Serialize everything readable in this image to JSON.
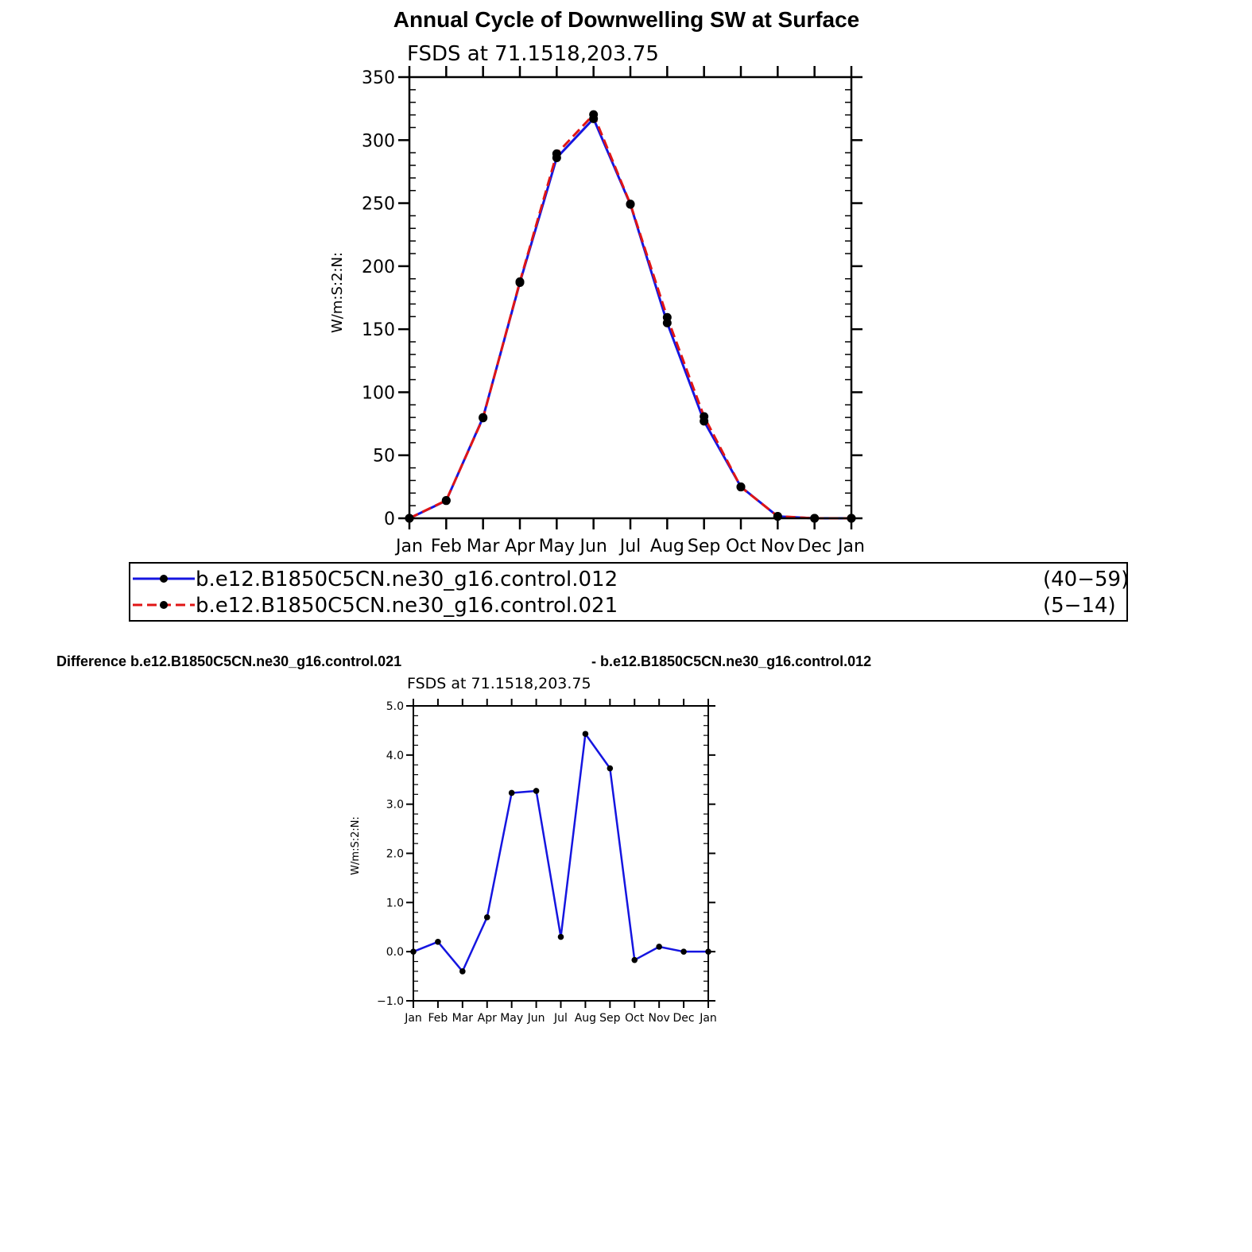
{
  "chart_data": [
    {
      "type": "line",
      "title": "Annual Cycle of Downwelling SW at Surface",
      "subtitle": "FSDS at 71.1518,203.75",
      "ylabel": "W/m:S:2:N:",
      "categories": [
        "Jan",
        "Feb",
        "Mar",
        "Apr",
        "May",
        "Jun",
        "Jul",
        "Aug",
        "Sep",
        "Oct",
        "Nov",
        "Dec",
        "Jan"
      ],
      "ylim": [
        0,
        350
      ],
      "yticks": [
        0,
        50,
        100,
        150,
        200,
        250,
        300,
        350
      ],
      "ytick_labels": [
        "0",
        "50",
        "100",
        "150",
        "200",
        "250",
        "300",
        "350"
      ],
      "series": [
        {
          "name": "b.e12.B1850C5CN.ne30_g16.control.012",
          "years": "(40−59)",
          "color": "#1515e0",
          "dash": "solid",
          "values": [
            0,
            14,
            80,
            187,
            286,
            317,
            249,
            155,
            77,
            25,
            1.5,
            0,
            0
          ]
        },
        {
          "name": "b.e12.B1850C5CN.ne30_g16.control.021",
          "years": "(5−14)",
          "color": "#e01515",
          "dash": "dashed",
          "values": [
            0,
            14.2,
            79.6,
            187.7,
            289.2,
            320.3,
            249.3,
            159.4,
            80.7,
            24.8,
            1.6,
            0,
            0
          ]
        }
      ]
    },
    {
      "type": "line",
      "title_left": "Difference b.e12.B1850C5CN.ne30_g16.control.021",
      "title_right": "- b.e12.B1850C5CN.ne30_g16.control.012",
      "subtitle": "FSDS at 71.1518,203.75",
      "ylabel": "W/m:S:2:N:",
      "categories": [
        "Jan",
        "Feb",
        "Mar",
        "Apr",
        "May",
        "Jun",
        "Jul",
        "Aug",
        "Sep",
        "Oct",
        "Nov",
        "Dec",
        "Jan"
      ],
      "ylim": [
        -1.0,
        5.0
      ],
      "yticks": [
        -1.0,
        0.0,
        1.0,
        2.0,
        3.0,
        4.0,
        5.0
      ],
      "ytick_labels": [
        "−1.0",
        "0.0",
        "1.0",
        "2.0",
        "3.0",
        "4.0",
        "5.0"
      ],
      "series": [
        {
          "color": "#1515e0",
          "values": [
            0,
            0.2,
            -0.4,
            0.7,
            3.23,
            3.27,
            0.3,
            4.43,
            3.73,
            -0.17,
            0.1,
            0,
            0
          ]
        }
      ]
    }
  ]
}
